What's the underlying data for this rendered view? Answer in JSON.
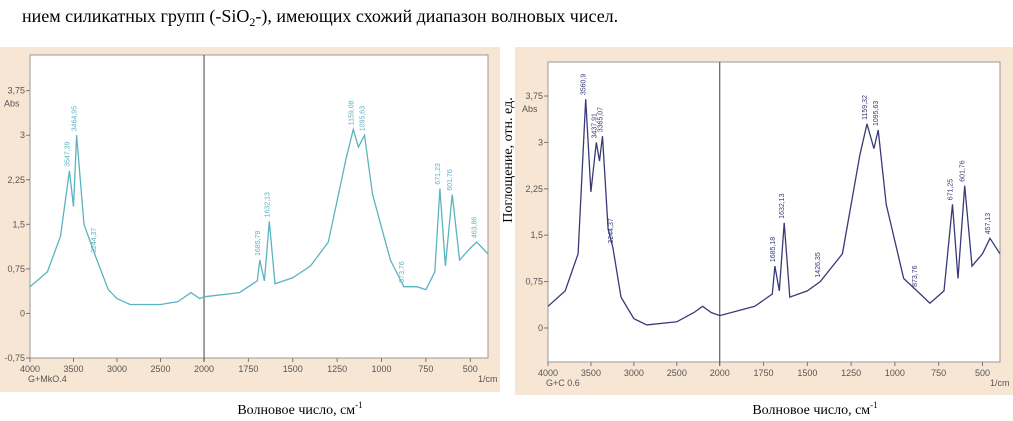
{
  "caption": [
    "нием силикатных групп (-SiO",
    "2",
    "-), имеющих схожий диапазон волновых чисел."
  ],
  "chart_data": [
    {
      "type": "line",
      "color": "#5ab4bf",
      "x_split": 2000,
      "x": [
        4000,
        3800,
        3650,
        3547.39,
        3500,
        3464.95,
        3380,
        3244.37,
        3100,
        3000,
        2850,
        2500,
        2300,
        2150,
        2050,
        2000,
        1800,
        1700,
        1685.79,
        1660,
        1632.13,
        1600,
        1500,
        1400,
        1300,
        1200,
        1159.08,
        1130,
        1095.63,
        1050,
        950,
        873.76,
        800,
        750,
        700,
        671.23,
        640,
        601.76,
        560,
        500,
        463.86,
        400
      ],
      "values": [
        0.45,
        0.7,
        1.3,
        2.4,
        1.8,
        3.0,
        1.5,
        0.95,
        0.4,
        0.25,
        0.15,
        0.15,
        0.2,
        0.35,
        0.25,
        0.28,
        0.35,
        0.55,
        0.9,
        0.55,
        1.55,
        0.5,
        0.6,
        0.8,
        1.2,
        2.6,
        3.1,
        2.8,
        3.0,
        2.0,
        0.9,
        0.45,
        0.45,
        0.4,
        0.7,
        2.1,
        0.8,
        2.0,
        0.9,
        1.1,
        1.2,
        1.0
      ],
      "xlim": [
        4000,
        400
      ],
      "xticks": [
        4000,
        3500,
        3000,
        2500,
        2000,
        1750,
        1500,
        1250,
        1000,
        750,
        500
      ],
      "ylim": [
        -0.75,
        4.35
      ],
      "yticks": [
        {
          "value": -0.75,
          "label": "-0,75"
        },
        0,
        {
          "value": 0.75,
          "label": "0,75"
        },
        {
          "value": 1.5,
          "label": "1,5"
        },
        {
          "value": 2.25,
          "label": "2,25"
        },
        3,
        {
          "value": 3.75,
          "label": "3,75"
        }
      ],
      "y_unit_label": "Abs",
      "x_unit_label": "1/cm",
      "sample": "G+MkO.4",
      "annotations": [
        {
          "text": "3547,39",
          "x": 3547.39,
          "y": 2.4
        },
        {
          "text": "3464,95",
          "x": 3464.95,
          "y": 3.0
        },
        {
          "text": "3244,37",
          "x": 3244.37,
          "y": 0.95
        },
        {
          "text": "1685,79",
          "x": 1685.79,
          "y": 0.9
        },
        {
          "text": "1632,13",
          "x": 1632.13,
          "y": 1.55
        },
        {
          "text": "1159,08",
          "x": 1159.08,
          "y": 3.1
        },
        {
          "text": "1095,63",
          "x": 1095.63,
          "y": 3.0
        },
        {
          "text": "873,76",
          "x": 873.76,
          "y": 0.45
        },
        {
          "text": "671,23",
          "x": 671.23,
          "y": 2.1
        },
        {
          "text": "601,76",
          "x": 601.76,
          "y": 2.0
        },
        {
          "text": "463,86",
          "x": 463.86,
          "y": 1.2
        }
      ],
      "xlabel": "Волновое число, см",
      "xlabel_sup": "-1"
    },
    {
      "type": "line",
      "color": "#3a3a78",
      "x_split": 2000,
      "x": [
        4000,
        3800,
        3650,
        3560.9,
        3500,
        3437.91,
        3400,
        3365.07,
        3300,
        3244.37,
        3150,
        3000,
        2850,
        2500,
        2300,
        2200,
        2100,
        2000,
        1800,
        1700,
        1685.18,
        1660,
        1632.13,
        1600,
        1500,
        1426.35,
        1300,
        1200,
        1159.32,
        1120,
        1095.63,
        1050,
        950,
        873.76,
        800,
        720,
        671.25,
        640,
        601.76,
        560,
        500,
        457.13,
        400
      ],
      "values": [
        0.35,
        0.6,
        1.2,
        3.7,
        2.2,
        3.0,
        2.7,
        3.1,
        1.6,
        1.3,
        0.5,
        0.15,
        0.05,
        0.1,
        0.25,
        0.35,
        0.25,
        0.2,
        0.35,
        0.55,
        1.0,
        0.6,
        1.7,
        0.5,
        0.6,
        0.75,
        1.2,
        2.8,
        3.3,
        2.9,
        3.2,
        2.0,
        0.8,
        0.6,
        0.4,
        0.6,
        2.0,
        0.8,
        2.3,
        1.0,
        1.2,
        1.45,
        1.2
      ],
      "xlim": [
        4000,
        400
      ],
      "xticks": [
        4000,
        3500,
        3000,
        2500,
        2000,
        1750,
        1500,
        1250,
        1000,
        750,
        500
      ],
      "ylim": [
        -0.55,
        4.3
      ],
      "yticks": [
        0,
        {
          "value": 0.75,
          "label": "0,75"
        },
        {
          "value": 1.5,
          "label": "1,5"
        },
        {
          "value": 2.25,
          "label": "2,25"
        },
        3,
        {
          "value": 3.75,
          "label": "3,75"
        }
      ],
      "y_unit_label": "Abs",
      "x_unit_label": "1/cm",
      "sample": "G+C 0.6",
      "annotations": [
        {
          "text": "3560,9",
          "x": 3560.9,
          "y": 3.7
        },
        {
          "text": "3437,91",
          "x": 3437.91,
          "y": 3.0
        },
        {
          "text": "3365,07",
          "x": 3365.07,
          "y": 3.1
        },
        {
          "text": "3244,37",
          "x": 3244.37,
          "y": 1.3
        },
        {
          "text": "1685,18",
          "x": 1685.18,
          "y": 1.0
        },
        {
          "text": "1632,13",
          "x": 1632.13,
          "y": 1.7
        },
        {
          "text": "1426,35",
          "x": 1426.35,
          "y": 0.75
        },
        {
          "text": "1159,32",
          "x": 1159.32,
          "y": 3.3
        },
        {
          "text": "1095,63",
          "x": 1095.63,
          "y": 3.2
        },
        {
          "text": "873,76",
          "x": 873.76,
          "y": 0.6
        },
        {
          "text": "671,25",
          "x": 671.25,
          "y": 2.0
        },
        {
          "text": "601,76",
          "x": 601.76,
          "y": 2.3
        },
        {
          "text": "457,13",
          "x": 457.13,
          "y": 1.45
        }
      ],
      "ylabel": "Поглощение, отн. ед.",
      "xlabel": "Волновое число, см",
      "xlabel_sup": "-1"
    }
  ]
}
